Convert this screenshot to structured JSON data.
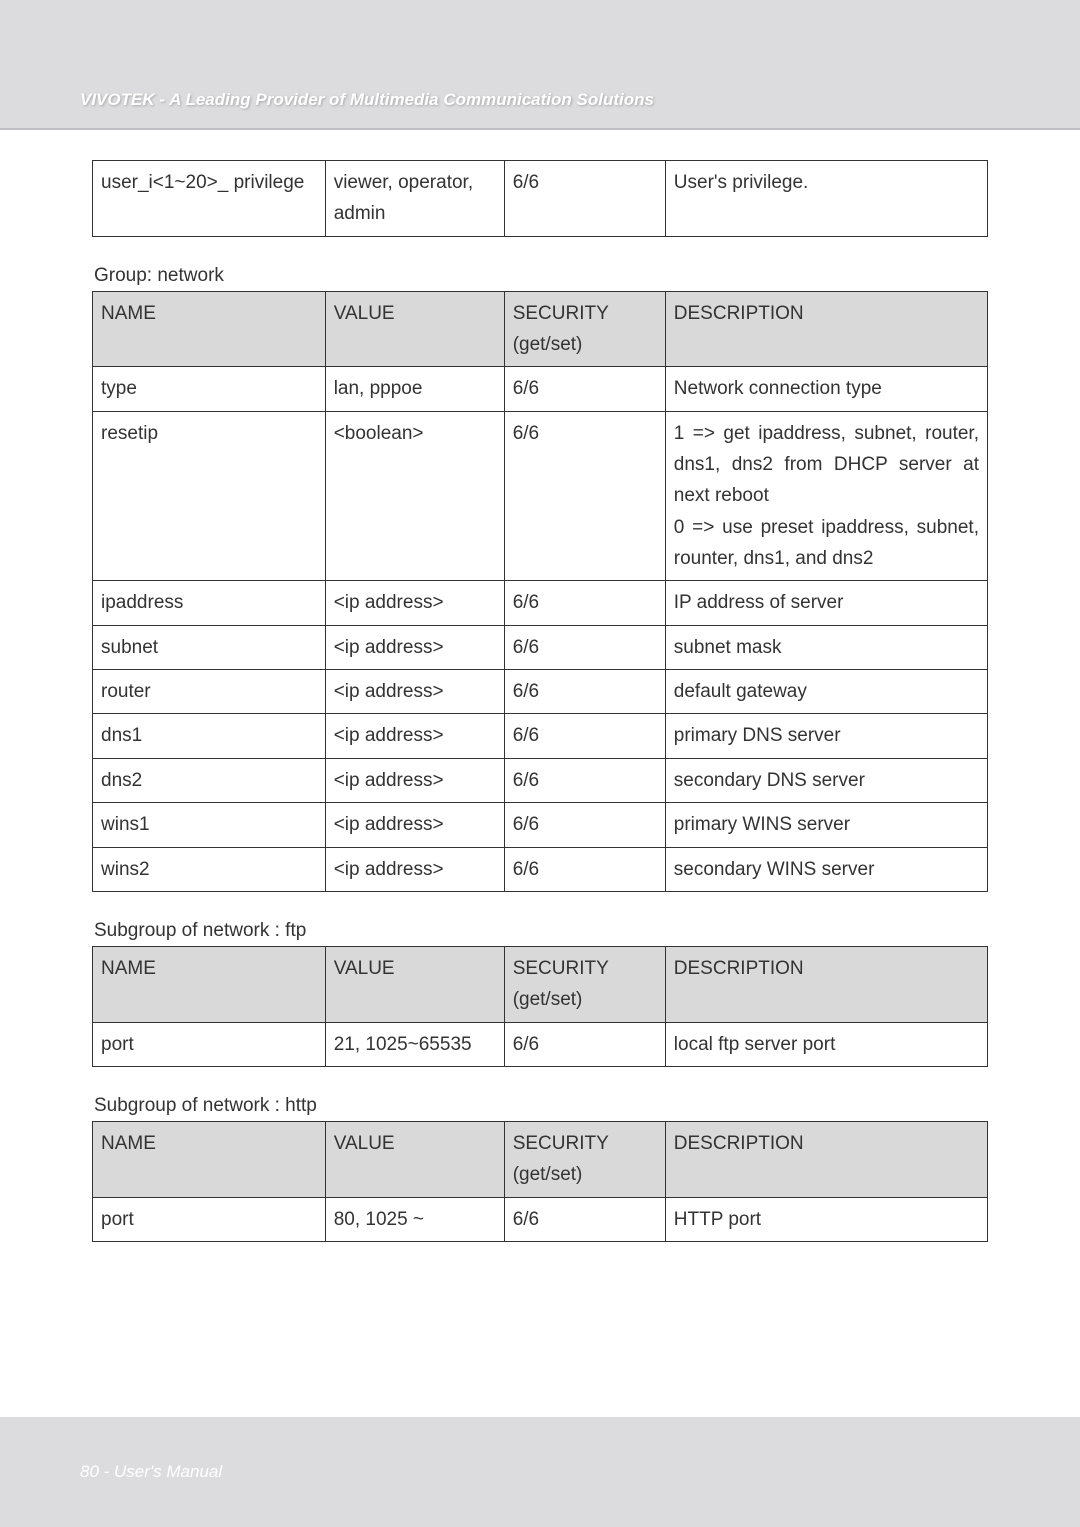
{
  "header": {
    "title": "VIVOTEK - A Leading Provider of Multimedia Communication Solutions"
  },
  "footer": {
    "text": "80 - User's Manual"
  },
  "table1": {
    "r0": {
      "name": "user_i<1~20>_ privilege",
      "value": "viewer, operator, admin",
      "sec": "6/6",
      "desc": "User's privilege."
    }
  },
  "group_network": {
    "label": "Group: network",
    "header": {
      "name": "NAME",
      "value": "VALUE",
      "sec": "SECURITY (get/set)",
      "desc": "DESCRIPTION"
    },
    "rows": {
      "r0": {
        "name": "type",
        "value": "lan, pppoe",
        "sec": "6/6",
        "desc": "Network connection type"
      },
      "r1": {
        "name": "resetip",
        "value": "<boolean>",
        "sec": "6/6",
        "desc": "1 => get ipaddress, subnet, router, dns1, dns2 from DHCP server at next reboot\n0 => use preset ipaddress, subnet, rounter, dns1, and dns2"
      },
      "r2": {
        "name": "ipaddress",
        "value": "<ip address>",
        "sec": "6/6",
        "desc": "IP address of server"
      },
      "r3": {
        "name": "subnet",
        "value": "<ip address>",
        "sec": "6/6",
        "desc": "subnet mask"
      },
      "r4": {
        "name": "router",
        "value": "<ip address>",
        "sec": "6/6",
        "desc": "default gateway"
      },
      "r5": {
        "name": "dns1",
        "value": "<ip address>",
        "sec": "6/6",
        "desc": "primary DNS server"
      },
      "r6": {
        "name": "dns2",
        "value": "<ip address>",
        "sec": "6/6",
        "desc": "secondary DNS server"
      },
      "r7": {
        "name": "wins1",
        "value": "<ip address>",
        "sec": "6/6",
        "desc": "primary WINS server"
      },
      "r8": {
        "name": "wins2",
        "value": "<ip address>",
        "sec": "6/6",
        "desc": "secondary WINS server"
      }
    }
  },
  "subgroup_ftp": {
    "label": "Subgroup of network   : ftp",
    "header": {
      "name": "NAME",
      "value": "VALUE",
      "sec": "SECURITY (get/set)",
      "desc": "DESCRIPTION"
    },
    "rows": {
      "r0": {
        "name": "port",
        "value": "21, 1025~65535",
        "sec": "6/6",
        "desc": "local ftp server port"
      }
    }
  },
  "subgroup_http": {
    "label": "Subgroup of network   : http",
    "header": {
      "name": "NAME",
      "value": "VALUE",
      "sec": "SECURITY (get/set)",
      "desc": "DESCRIPTION"
    },
    "rows": {
      "r0": {
        "name": "port",
        "value": "80, 1025 ~",
        "sec": "6/6",
        "desc": "HTTP port"
      }
    }
  },
  "colors": {
    "band_bg": "#dcdcde",
    "header_text": "#ffffff",
    "table_header_bg": "#d9d9d9",
    "border": "#333333",
    "body_text": "#333333"
  }
}
